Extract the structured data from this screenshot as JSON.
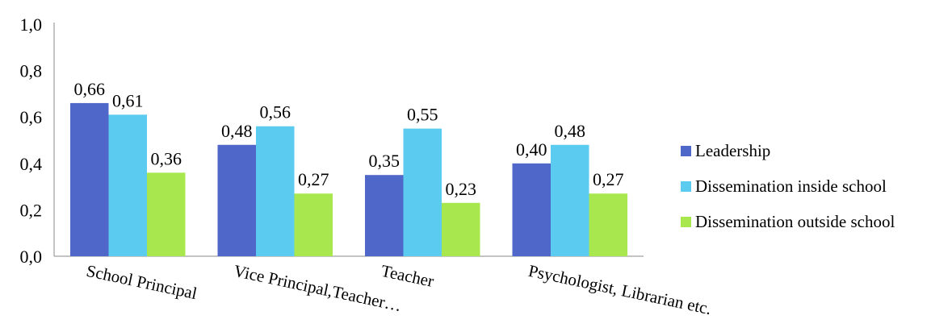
{
  "chart_data": {
    "type": "bar",
    "categories": [
      "School Principal",
      "Vice Principal,Teacher…",
      "Teacher",
      "Psychologist, Librarian etc."
    ],
    "series": [
      {
        "name": "Leadership",
        "values": [
          0.66,
          0.48,
          0.35,
          0.4
        ],
        "labels": [
          "0,66",
          "0,48",
          "0,35",
          "0,40"
        ],
        "color": "#4F67C9"
      },
      {
        "name": "Dissemination inside school",
        "values": [
          0.61,
          0.56,
          0.55,
          0.48
        ],
        "labels": [
          "0,61",
          "0,56",
          "0,55",
          "0,48"
        ],
        "color": "#5BCBF0"
      },
      {
        "name": "Dissemination outside school",
        "values": [
          0.36,
          0.27,
          0.23,
          0.27
        ],
        "labels": [
          "0,36",
          "0,27",
          "0,23",
          "0,27"
        ],
        "color": "#A8E84E"
      }
    ],
    "ylim": [
      0,
      1.0
    ],
    "yticks": [
      0.0,
      0.2,
      0.4,
      0.6,
      0.8,
      1.0
    ],
    "ytick_labels": [
      "0,0",
      "0,2",
      "0,4",
      "0,6",
      "0,8",
      "1,0"
    ],
    "grid": false,
    "legend_position": "right",
    "xlabel": "",
    "ylabel": "",
    "title": ""
  }
}
